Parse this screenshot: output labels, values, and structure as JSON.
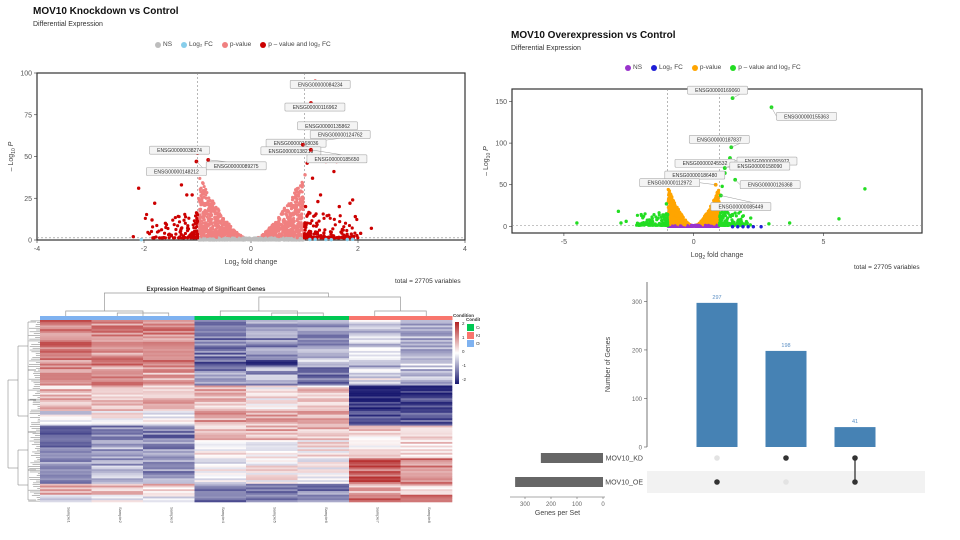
{
  "chart_data": [
    {
      "id": "volcano_kd",
      "type": "scatter",
      "title": "MOV10 Knockdown vs Control",
      "subtitle": "Differential Expression",
      "xlabel": "Log2 fold change",
      "ylabel": "-Log10 P",
      "xlim": [
        -4,
        4
      ],
      "ylim": [
        0,
        100
      ],
      "xticks": [
        -4,
        -2,
        0,
        2,
        4
      ],
      "yticks": [
        0,
        25,
        50,
        75,
        100
      ],
      "fc_cutoff": 1,
      "p_cutoff_log": 1.3,
      "legend": [
        {
          "label": "NS",
          "color": "#bdbdbd"
        },
        {
          "label": "Log₂ FC",
          "color": "#87ceeb"
        },
        {
          "label": "p-value",
          "color": "#f08080"
        },
        {
          "label": "p – value and log₂ FC",
          "color": "#cc0000"
        }
      ],
      "caption": "total = 27705 variables",
      "labeled_points": [
        {
          "label": "ENSG00000084234",
          "x": 1.2,
          "y": 95
        },
        {
          "label": "ENSG00000116962",
          "x": 1.12,
          "y": 82
        },
        {
          "label": "ENSG00000135862",
          "x": 1.15,
          "y": 63
        },
        {
          "label": "ENSG00000124762",
          "x": 1.2,
          "y": 59
        },
        {
          "label": "ENSG00000168036",
          "x": 0.88,
          "y": 58
        },
        {
          "label": "ENSG00000138219",
          "x": 0.97,
          "y": 57
        },
        {
          "label": "ENSG00000185650",
          "x": 1.12,
          "y": 54
        },
        {
          "label": "ENSG00000038274",
          "x": -1.0,
          "y": 52
        },
        {
          "label": "ENSG00000148212",
          "x": -1.02,
          "y": 47
        },
        {
          "label": "ENSG00000089275",
          "x": -0.8,
          "y": 48
        }
      ],
      "extra_points": [
        {
          "x": -2.1,
          "y": 31,
          "cat": 3
        },
        {
          "x": -1.8,
          "y": 22,
          "cat": 3
        },
        {
          "x": -1.3,
          "y": 33,
          "cat": 3
        },
        {
          "x": -1.2,
          "y": 27,
          "cat": 3
        },
        {
          "x": -1.1,
          "y": 27,
          "cat": 3
        },
        {
          "x": -1.85,
          "y": 12,
          "cat": 3
        },
        {
          "x": -1.6,
          "y": 10,
          "cat": 3
        },
        {
          "x": -2.2,
          "y": 2,
          "cat": 3
        },
        {
          "x": 1.05,
          "y": 46,
          "cat": 3
        },
        {
          "x": 1.4,
          "y": 47,
          "cat": 3
        },
        {
          "x": 1.6,
          "y": 47,
          "cat": 3
        },
        {
          "x": 1.55,
          "y": 41,
          "cat": 3
        },
        {
          "x": 1.15,
          "y": 37,
          "cat": 3
        },
        {
          "x": 1.3,
          "y": 27,
          "cat": 3
        },
        {
          "x": 1.25,
          "y": 23,
          "cat": 3
        },
        {
          "x": 1.9,
          "y": 24,
          "cat": 3
        },
        {
          "x": 1.85,
          "y": 22,
          "cat": 3
        },
        {
          "x": 1.65,
          "y": 20,
          "cat": 3
        },
        {
          "x": 1.95,
          "y": 14,
          "cat": 3
        },
        {
          "x": 2.25,
          "y": 7,
          "cat": 3
        },
        {
          "x": 2.05,
          "y": 4,
          "cat": 3
        },
        {
          "x": 1.02,
          "y": 20,
          "cat": 3
        },
        {
          "x": 1.01,
          "y": 39,
          "cat": 2
        },
        {
          "x": -2.05,
          "y": 0.2,
          "cat": 1
        },
        {
          "x": 1.1,
          "y": 0.3,
          "cat": 1
        },
        {
          "x": 1.2,
          "y": 0.4,
          "cat": 1
        },
        {
          "x": 1.4,
          "y": 0.3,
          "cat": 1
        },
        {
          "x": 1.5,
          "y": 0.2,
          "cat": 1
        },
        {
          "x": 1.8,
          "y": 0.3,
          "cat": 1
        },
        {
          "x": 1.9,
          "y": 0.4,
          "cat": 1
        }
      ]
    },
    {
      "id": "volcano_oe",
      "type": "scatter",
      "title": "MOV10 Overexpression vs Control",
      "subtitle": "Differential Expression",
      "xlabel": "Log2 fold change",
      "ylabel": "-Log10 P",
      "xlim": [
        -7,
        8.8
      ],
      "ylim": [
        -8,
        165
      ],
      "xticks": [
        -5,
        0,
        5
      ],
      "yticks": [
        0,
        50,
        100,
        150
      ],
      "fc_cutoff": 1,
      "p_cutoff_log": 1.3,
      "legend": [
        {
          "label": "NS",
          "color": "#9933cc"
        },
        {
          "label": "Log₂ FC",
          "color": "#1f1fd6"
        },
        {
          "label": "p-value",
          "color": "#ffa500"
        },
        {
          "label": "p – value and log₂ FC",
          "color": "#22dd22"
        }
      ],
      "caption": "total = 27705 variables",
      "labeled_points": [
        {
          "label": "ENSG00000169060",
          "x": 1.5,
          "y": 154
        },
        {
          "label": "ENSG00000155363",
          "x": 3.0,
          "y": 143
        },
        {
          "label": "ENSG00000187837",
          "x": 1.45,
          "y": 95
        },
        {
          "label": "ENSG00000265972",
          "x": 1.4,
          "y": 82
        },
        {
          "label": "ENSG00000245532",
          "x": 0.9,
          "y": 77
        },
        {
          "label": "ENSG00000186480",
          "x": 1.2,
          "y": 64
        },
        {
          "label": "ENSG00000158090",
          "x": 1.2,
          "y": 70
        },
        {
          "label": "ENSG00000126368",
          "x": 1.6,
          "y": 56
        },
        {
          "label": "ENSG00000112972",
          "x": 0.85,
          "y": 50
        },
        {
          "label": "ENSG00000085449",
          "x": 1.05,
          "y": 37
        }
      ],
      "extra_points": [
        {
          "x": 6.6,
          "y": 45,
          "cat": 3
        },
        {
          "x": 5.6,
          "y": 9,
          "cat": 3
        },
        {
          "x": 3.7,
          "y": 4,
          "cat": 3
        },
        {
          "x": 2.9,
          "y": 3,
          "cat": 3
        },
        {
          "x": -4.5,
          "y": 4,
          "cat": 3
        },
        {
          "x": -2.9,
          "y": 18,
          "cat": 3
        },
        {
          "x": -2.6,
          "y": 6,
          "cat": 3
        },
        {
          "x": -2.8,
          "y": 4,
          "cat": 3
        },
        {
          "x": 1.1,
          "y": 48,
          "cat": 3
        },
        {
          "x": 1.8,
          "y": 18,
          "cat": 3
        },
        {
          "x": 1.6,
          "y": 16,
          "cat": 3
        },
        {
          "x": 1.3,
          "y": 22,
          "cat": 3
        },
        {
          "x": 2.2,
          "y": 10,
          "cat": 3
        },
        {
          "x": -1.05,
          "y": 27,
          "cat": 3
        },
        {
          "x": 1.5,
          "y": -0.5,
          "cat": 1
        },
        {
          "x": 1.7,
          "y": -0.5,
          "cat": 1
        },
        {
          "x": 1.9,
          "y": -0.5,
          "cat": 1
        },
        {
          "x": 2.1,
          "y": -0.5,
          "cat": 1
        },
        {
          "x": 2.3,
          "y": -0.5,
          "cat": 1
        },
        {
          "x": 2.6,
          "y": -0.5,
          "cat": 1
        }
      ]
    },
    {
      "id": "heatmap",
      "type": "heatmap",
      "title": "Expression Heatmap of Significant Genes",
      "columns": [
        "Sample1",
        "Sample2",
        "Sample3",
        "Sample4",
        "Sample5",
        "Sample6",
        "Sample7",
        "Sample8"
      ],
      "column_condition": [
        "OE",
        "OE",
        "OE",
        "Control",
        "Control",
        "Control",
        "KD",
        "KD"
      ],
      "condition_colors": {
        "Control": "#00c853",
        "KD": "#f8766d",
        "OE": "#7fb2f0"
      },
      "annotation_title": "Condition",
      "legend_title": "Condition",
      "legend_items": [
        "Control",
        "KD",
        "OE"
      ],
      "color_scale": {
        "min": -2,
        "max": 2,
        "ticks": [
          2,
          1,
          0,
          -1,
          -2
        ],
        "low": "#191970",
        "mid": "#ffffff",
        "high": "#b22222"
      },
      "row_blocks": [
        {
          "rows": 22,
          "values": [
            1.2,
            1.0,
            1.1,
            -1.1,
            -1.0,
            -0.8,
            -0.4,
            -0.6
          ]
        },
        {
          "rows": 4,
          "values": [
            0.9,
            1.1,
            1.2,
            -1.3,
            -1.5,
            -0.6,
            -0.9,
            -0.4
          ]
        },
        {
          "rows": 10,
          "values": [
            1.0,
            0.9,
            0.8,
            -1.0,
            -0.8,
            -1.2,
            -0.2,
            -0.5
          ]
        },
        {
          "rows": 14,
          "values": [
            0.6,
            0.5,
            0.6,
            0.6,
            0.2,
            0.4,
            -1.8,
            -1.7
          ]
        },
        {
          "rows": 8,
          "values": [
            -0.2,
            0.1,
            -0.1,
            0.9,
            0.7,
            0.8,
            -1.6,
            -1.5
          ]
        },
        {
          "rows": 8,
          "values": [
            -1.4,
            -1.0,
            -1.1,
            0.6,
            0.7,
            0.6,
            0.4,
            0.5
          ]
        },
        {
          "rows": 10,
          "values": [
            -1.3,
            -0.8,
            -0.9,
            0.2,
            0.0,
            0.2,
            0.3,
            0.3
          ]
        },
        {
          "rows": 14,
          "values": [
            -0.8,
            -0.7,
            -0.9,
            -0.1,
            0.1,
            0.0,
            1.4,
            1.1
          ]
        },
        {
          "rows": 6,
          "values": [
            0.6,
            0.5,
            0.5,
            -1.0,
            -1.0,
            -1.1,
            0.6,
            0.5
          ]
        },
        {
          "rows": 4,
          "values": [
            -0.3,
            -0.2,
            -0.2,
            -1.2,
            -1.1,
            -1.2,
            1.5,
            1.2
          ]
        }
      ]
    },
    {
      "id": "upset",
      "type": "bar",
      "ylabel": "Number of Genes",
      "ylim": [
        0,
        340
      ],
      "yticks": [
        0,
        100,
        200,
        300
      ],
      "caption": "total = 27705 variables",
      "intersections": [
        {
          "sets": [
            "MOV10_OE"
          ],
          "value": 297
        },
        {
          "sets": [
            "MOV10_KD"
          ],
          "value": 198
        },
        {
          "sets": [
            "MOV10_KD",
            "MOV10_OE"
          ],
          "value": 41
        }
      ],
      "sets": [
        {
          "name": "MOV10_KD",
          "size": 239
        },
        {
          "name": "MOV10_OE",
          "size": 338
        }
      ],
      "set_xlabel": "Genes per Set",
      "set_xticks": [
        300,
        200,
        100,
        0
      ],
      "bar_color": "#4682b4",
      "set_bar_color": "#666666"
    }
  ]
}
